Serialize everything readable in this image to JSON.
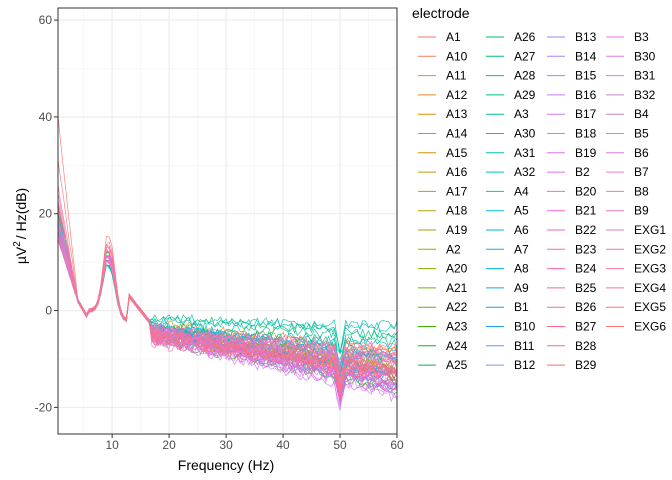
{
  "chart_data": {
    "type": "line",
    "title": "",
    "xlabel": "Frequency (Hz)",
    "ylabel_main": "µV",
    "ylabel_sup": "2",
    "ylabel_rest": "/ Hz(dB)",
    "xlim": [
      0.5,
      60
    ],
    "ylim": [
      -25.5,
      62.5
    ],
    "x_ticks": [
      10,
      20,
      30,
      40,
      50,
      60
    ],
    "x_tick_labels": [
      "10",
      "20",
      "30",
      "40",
      "50",
      "60"
    ],
    "y_ticks": [
      -20,
      0,
      20,
      40,
      60
    ],
    "y_tick_labels": [
      "-20",
      "0",
      "20",
      "40",
      "60"
    ],
    "grid": true,
    "legend_title": "electrode",
    "legend_position": "right",
    "legend_columns": 4,
    "series": [
      {
        "name": "A1",
        "color": "#F8766D",
        "start": 31,
        "alpha": 15,
        "tail": -6,
        "slope": -0.08
      },
      {
        "name": "A10",
        "color": "#F47A5B",
        "start": 22,
        "alpha": 14,
        "tail": -5,
        "slope": -0.1
      },
      {
        "name": "A11",
        "color": "#EF7F49",
        "start": 20,
        "alpha": 13,
        "tail": -5,
        "slope": -0.11
      },
      {
        "name": "A12",
        "color": "#E88526",
        "start": 19,
        "alpha": 13,
        "tail": -6,
        "slope": -0.12
      },
      {
        "name": "A13",
        "color": "#E38900",
        "start": 20,
        "alpha": 14,
        "tail": -5,
        "slope": -0.13
      },
      {
        "name": "A14",
        "color": "#DA8E00",
        "start": 18,
        "alpha": 12,
        "tail": -6,
        "slope": -0.14
      },
      {
        "name": "A15",
        "color": "#D19200",
        "start": 19,
        "alpha": 13,
        "tail": -5,
        "slope": -0.15
      },
      {
        "name": "A16",
        "color": "#C79800",
        "start": 17,
        "alpha": 12,
        "tail": -6,
        "slope": -0.16
      },
      {
        "name": "A17",
        "color": "#BD9C00",
        "start": 18,
        "alpha": 13,
        "tail": -5,
        "slope": -0.17
      },
      {
        "name": "A18",
        "color": "#B0A100",
        "start": 17,
        "alpha": 12,
        "tail": -6,
        "slope": -0.18
      },
      {
        "name": "A19",
        "color": "#A3A500",
        "start": 16,
        "alpha": 12,
        "tail": -5,
        "slope": -0.19
      },
      {
        "name": "A2",
        "color": "#95A900",
        "start": 20,
        "alpha": 14,
        "tail": -6,
        "slope": -0.2
      },
      {
        "name": "A20",
        "color": "#84AD00",
        "start": 17,
        "alpha": 12,
        "tail": -5,
        "slope": -0.21
      },
      {
        "name": "A21",
        "color": "#72B000",
        "start": 16,
        "alpha": 12,
        "tail": -6,
        "slope": -0.22
      },
      {
        "name": "A22",
        "color": "#5BB300",
        "start": 16,
        "alpha": 12,
        "tail": -5,
        "slope": -0.23
      },
      {
        "name": "A23",
        "color": "#39B600",
        "start": 17,
        "alpha": 13,
        "tail": -6,
        "slope": -0.24
      },
      {
        "name": "A24",
        "color": "#00B81F",
        "start": 16,
        "alpha": 12,
        "tail": -5,
        "slope": -0.25
      },
      {
        "name": "A25",
        "color": "#00BA42",
        "start": 15,
        "alpha": 12,
        "tail": -6,
        "slope": -0.26
      },
      {
        "name": "A26",
        "color": "#00BC59",
        "start": 15,
        "alpha": 11,
        "tail": -5,
        "slope": -0.27
      },
      {
        "name": "A27",
        "color": "#00BE6C",
        "start": 15,
        "alpha": 11,
        "tail": -4,
        "slope": -0.08
      },
      {
        "name": "A28",
        "color": "#00BF7D",
        "start": 16,
        "alpha": 12,
        "tail": -4,
        "slope": -0.06
      },
      {
        "name": "A29",
        "color": "#00C08D",
        "start": 15,
        "alpha": 11,
        "tail": -4,
        "slope": -0.04
      },
      {
        "name": "A3",
        "color": "#00C19C",
        "start": 22,
        "alpha": 14,
        "tail": -5,
        "slope": -0.12
      },
      {
        "name": "A30",
        "color": "#00C1AA",
        "start": 16,
        "alpha": 12,
        "tail": -4,
        "slope": -0.02
      },
      {
        "name": "A31",
        "color": "#00C0B8",
        "start": 15,
        "alpha": 11,
        "tail": -4,
        "slope": -0.05
      },
      {
        "name": "A32",
        "color": "#00BFC4",
        "start": 16,
        "alpha": 12,
        "tail": -4,
        "slope": -0.07
      },
      {
        "name": "A4",
        "color": "#00BDD0",
        "start": 21,
        "alpha": 13,
        "tail": -5,
        "slope": -0.14
      },
      {
        "name": "A5",
        "color": "#00BBDB",
        "start": 20,
        "alpha": 13,
        "tail": -5,
        "slope": -0.15
      },
      {
        "name": "A6",
        "color": "#00B8E5",
        "start": 19,
        "alpha": 12,
        "tail": -5,
        "slope": -0.16
      },
      {
        "name": "A7",
        "color": "#00B4EF",
        "start": 18,
        "alpha": 13,
        "tail": -5,
        "slope": -0.17
      },
      {
        "name": "A8",
        "color": "#00B0F6",
        "start": 17,
        "alpha": 12,
        "tail": -5,
        "slope": -0.18
      },
      {
        "name": "A9",
        "color": "#00ABFD",
        "start": 18,
        "alpha": 12,
        "tail": -5,
        "slope": -0.19
      },
      {
        "name": "B1",
        "color": "#00A5FF",
        "start": 17,
        "alpha": 13,
        "tail": -6,
        "slope": -0.2
      },
      {
        "name": "B10",
        "color": "#1F9FFF",
        "start": 16,
        "alpha": 12,
        "tail": -6,
        "slope": -0.21
      },
      {
        "name": "B11",
        "color": "#5C98FF",
        "start": 17,
        "alpha": 13,
        "tail": -6,
        "slope": -0.22
      },
      {
        "name": "B12",
        "color": "#7B91FF",
        "start": 16,
        "alpha": 12,
        "tail": -6,
        "slope": -0.23
      },
      {
        "name": "B13",
        "color": "#9389FF",
        "start": 15,
        "alpha": 12,
        "tail": -6,
        "slope": -0.24
      },
      {
        "name": "B14",
        "color": "#A682FF",
        "start": 15,
        "alpha": 13,
        "tail": -6,
        "slope": -0.25
      },
      {
        "name": "B15",
        "color": "#B77CFF",
        "start": 15,
        "alpha": 12,
        "tail": -6,
        "slope": -0.26
      },
      {
        "name": "B16",
        "color": "#C37BFB",
        "start": 16,
        "alpha": 13,
        "tail": -6,
        "slope": -0.27
      },
      {
        "name": "B17",
        "color": "#CE79F6",
        "start": 15,
        "alpha": 12,
        "tail": -6,
        "slope": -0.28
      },
      {
        "name": "B18",
        "color": "#D876F0",
        "start": 15,
        "alpha": 12,
        "tail": -6,
        "slope": -0.28
      },
      {
        "name": "B19",
        "color": "#E073EA",
        "start": 16,
        "alpha": 13,
        "tail": -6,
        "slope": -0.27
      },
      {
        "name": "B2",
        "color": "#E76BF3",
        "start": 19,
        "alpha": 13,
        "tail": -6,
        "slope": -0.22
      },
      {
        "name": "B20",
        "color": "#ED69DE",
        "start": 15,
        "alpha": 12,
        "tail": -6,
        "slope": -0.26
      },
      {
        "name": "B21",
        "color": "#F265D2",
        "start": 15,
        "alpha": 12,
        "tail": -6,
        "slope": -0.25
      },
      {
        "name": "B22",
        "color": "#F663C6",
        "start": 16,
        "alpha": 13,
        "tail": -6,
        "slope": -0.24
      },
      {
        "name": "B23",
        "color": "#F962B9",
        "start": 15,
        "alpha": 12,
        "tail": -6,
        "slope": -0.23
      },
      {
        "name": "B24",
        "color": "#FB61AC",
        "start": 16,
        "alpha": 12,
        "tail": -6,
        "slope": -0.22
      },
      {
        "name": "B25",
        "color": "#FC629E",
        "start": 15,
        "alpha": 12,
        "tail": -6,
        "slope": -0.21
      },
      {
        "name": "B26",
        "color": "#FD6390",
        "start": 16,
        "alpha": 13,
        "tail": -6,
        "slope": -0.2
      },
      {
        "name": "B27",
        "color": "#FC6582",
        "start": 15,
        "alpha": 12,
        "tail": -6,
        "slope": -0.19
      },
      {
        "name": "B28",
        "color": "#FB6875",
        "start": 16,
        "alpha": 12,
        "tail": -6,
        "slope": -0.18
      },
      {
        "name": "B29",
        "color": "#FA6C68",
        "start": 15,
        "alpha": 12,
        "tail": -6,
        "slope": -0.17
      },
      {
        "name": "B3",
        "color": "#E57AE5",
        "start": 19,
        "alpha": 13,
        "tail": -6,
        "slope": -0.18
      },
      {
        "name": "B30",
        "color": "#DE7FDC",
        "start": 16,
        "alpha": 12,
        "tail": -6,
        "slope": -0.16
      },
      {
        "name": "B31",
        "color": "#D781D3",
        "start": 15,
        "alpha": 12,
        "tail": -6,
        "slope": -0.15
      },
      {
        "name": "B32",
        "color": "#D083CA",
        "start": 15,
        "alpha": 12,
        "tail": -6,
        "slope": -0.14
      },
      {
        "name": "B4",
        "color": "#C984C1",
        "start": 18,
        "alpha": 13,
        "tail": -6,
        "slope": -0.13
      },
      {
        "name": "B5",
        "color": "#E07EDE",
        "start": 18,
        "alpha": 13,
        "tail": -6,
        "slope": -0.12
      },
      {
        "name": "B6",
        "color": "#E67CD8",
        "start": 17,
        "alpha": 12,
        "tail": -6,
        "slope": -0.11
      },
      {
        "name": "B7",
        "color": "#EB7AD0",
        "start": 17,
        "alpha": 12,
        "tail": -6,
        "slope": -0.1
      },
      {
        "name": "B8",
        "color": "#EF78C8",
        "start": 16,
        "alpha": 12,
        "tail": -6,
        "slope": -0.09
      },
      {
        "name": "B9",
        "color": "#F377BF",
        "start": 16,
        "alpha": 12,
        "tail": -6,
        "slope": -0.08
      },
      {
        "name": "EXG1",
        "color": "#F676B5",
        "start": 26,
        "alpha": 16,
        "tail": -7,
        "slope": -0.12
      },
      {
        "name": "EXG2",
        "color": "#F875AB",
        "start": 24,
        "alpha": 15,
        "tail": -7,
        "slope": -0.14
      },
      {
        "name": "EXG3",
        "color": "#F974A0",
        "start": 23,
        "alpha": 15,
        "tail": -7,
        "slope": -0.15
      },
      {
        "name": "EXG4",
        "color": "#FA7394",
        "start": 22,
        "alpha": 14,
        "tail": -7,
        "slope": -0.16
      },
      {
        "name": "EXG5",
        "color": "#F97486",
        "start": 21,
        "alpha": 14,
        "tail": -7,
        "slope": -0.17
      },
      {
        "name": "EXG6",
        "color": "#F8766D",
        "start": 40,
        "alpha": 17,
        "tail": -7,
        "slope": -0.18
      }
    ]
  }
}
